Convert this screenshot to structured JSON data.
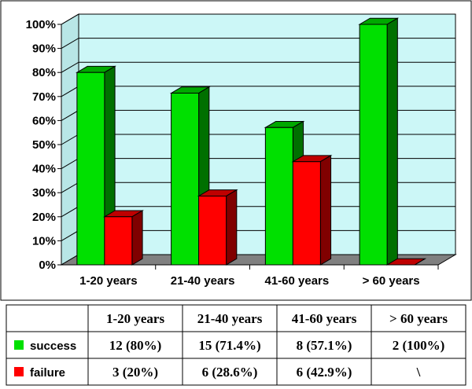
{
  "chart_data": {
    "type": "bar",
    "three_d": true,
    "categories": [
      "1-20 years",
      "21-40 years",
      "41-60 years",
      "> 60 years"
    ],
    "series": [
      {
        "name": "success",
        "color": "#00e000",
        "values": [
          80,
          71.4,
          57.1,
          100
        ]
      },
      {
        "name": "failure",
        "color": "#ff0000",
        "values": [
          20,
          28.6,
          42.9,
          0
        ]
      }
    ],
    "ylim": [
      0,
      100
    ],
    "yticks": [
      "0%",
      "10%",
      "20%",
      "30%",
      "40%",
      "50%",
      "60%",
      "70%",
      "80%",
      "90%",
      "100%"
    ],
    "plot_background": "#ccf7f7",
    "grid": true,
    "legend": "data-table",
    "table": {
      "columns": [
        "1-20 years",
        "21-40 years",
        "41-60 years",
        "> 60 years"
      ],
      "rows": [
        {
          "label": "success",
          "cells": [
            "12 (80%)",
            "15 (71.4%)",
            "8 (57.1%)",
            "2 (100%)"
          ]
        },
        {
          "label": "failure",
          "cells": [
            "3 (20%)",
            "6 (28.6%)",
            "6 (42.9%)",
            "\\"
          ]
        }
      ]
    }
  }
}
